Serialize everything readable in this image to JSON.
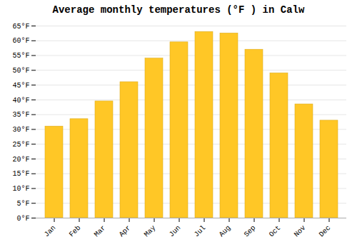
{
  "chart_data": {
    "type": "bar",
    "title": "Average monthly temperatures (°F ) in Calw",
    "categories": [
      "Jan",
      "Feb",
      "Mar",
      "Apr",
      "May",
      "Jun",
      "Jul",
      "Aug",
      "Sep",
      "Oct",
      "Nov",
      "Dec"
    ],
    "values": [
      31,
      33.5,
      39.5,
      46,
      54,
      59.5,
      63,
      62.5,
      57,
      49,
      38.5,
      33
    ],
    "color": "#FFC726",
    "ylim": [
      0,
      65
    ],
    "yticks": [
      {
        "value": 0,
        "label": "0°F"
      },
      {
        "value": 5,
        "label": "5°F"
      },
      {
        "value": 10,
        "label": "10°F"
      },
      {
        "value": 15,
        "label": "15°F"
      },
      {
        "value": 20,
        "label": "20°F"
      },
      {
        "value": 25,
        "label": "25°F"
      },
      {
        "value": 30,
        "label": "30°F"
      },
      {
        "value": 35,
        "label": "35°F"
      },
      {
        "value": 40,
        "label": "40°F"
      },
      {
        "value": 45,
        "label": "45°F"
      },
      {
        "value": 50,
        "label": "50°F"
      },
      {
        "value": 55,
        "label": "55°F"
      },
      {
        "value": 60,
        "label": "60°F"
      },
      {
        "value": 65,
        "label": "65°F"
      }
    ],
    "grid": true
  }
}
